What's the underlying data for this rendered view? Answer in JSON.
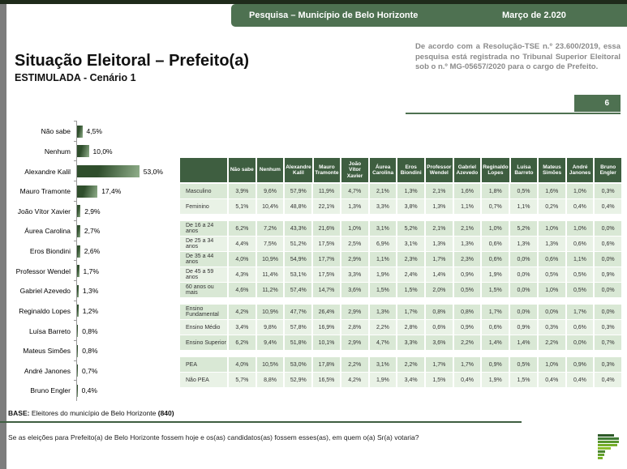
{
  "window": {
    "titlebar": {
      "title": "Pesquisa – Município de Belo Horizonte",
      "date": "Março de  2.020"
    }
  },
  "page": {
    "title": "Situação Eleitoral – Prefeito(a)",
    "subtitle": "ESTIMULADA - Cenário 1",
    "regulation_note": "De acordo com a Resolução-TSE n.º 23.600/2019, essa pesquisa está registrada no Tribunal Superior Eleitoral sob o n.º MG-05657/2020 para o cargo de Prefeito.",
    "page_number": "6"
  },
  "chart_data": {
    "type": "bar",
    "orientation": "horizontal",
    "title": "Situação Eleitoral – Prefeito(a) (Estimulada - Cenário 1)",
    "unit": "%",
    "xlim": [
      0,
      60
    ],
    "categories": [
      "Não sabe",
      "Nenhum",
      "Alexandre Kalil",
      "Mauro Tramonte",
      "João Vítor Xavier",
      "Áurea Carolina",
      "Eros Biondini",
      "Professor Wendel",
      "Gabriel Azevedo",
      "Reginaldo Lopes",
      "Luísa Barreto",
      "Mateus Simões",
      "André Janones",
      "Bruno Engler"
    ],
    "values": [
      4.5,
      10.0,
      53.0,
      17.4,
      2.9,
      2.7,
      2.6,
      1.7,
      1.3,
      1.2,
      0.8,
      0.8,
      0.7,
      0.4
    ],
    "labels": [
      "4,5%",
      "10,0%",
      "53,0%",
      "17,4%",
      "2,9%",
      "2,7%",
      "2,6%",
      "1,7%",
      "1,3%",
      "1,2%",
      "0,8%",
      "0,8%",
      "0,7%",
      "0,4%"
    ]
  },
  "table": {
    "columns": [
      "Não sabe",
      "Nenhum",
      "Alexandre Kalil",
      "Mauro Tramonte",
      "João Vítor Xavier",
      "Áurea Carolina",
      "Eros Biondini",
      "Professor Wendel",
      "Gabriel Azevedo",
      "Reginaldo Lopes",
      "Luísa Barreto",
      "Mateus Simões",
      "André Janones",
      "Bruno Engler"
    ],
    "groups": [
      {
        "rows": [
          {
            "label": "Masculino",
            "values": [
              "3,9%",
              "9,6%",
              "57,9%",
              "11,9%",
              "4,7%",
              "2,1%",
              "1,3%",
              "2,1%",
              "1,6%",
              "1,8%",
              "0,5%",
              "1,6%",
              "1,0%",
              "0,3%"
            ]
          },
          {
            "label": "Feminino",
            "values": [
              "5,1%",
              "10,4%",
              "48,8%",
              "22,1%",
              "1,3%",
              "3,3%",
              "3,8%",
              "1,3%",
              "1,1%",
              "0,7%",
              "1,1%",
              "0,2%",
              "0,4%",
              "0,4%"
            ]
          }
        ]
      },
      {
        "rows": [
          {
            "label": "De 16 a 24 anos",
            "values": [
              "6,2%",
              "7,2%",
              "43,3%",
              "21,6%",
              "1,0%",
              "3,1%",
              "5,2%",
              "2,1%",
              "2,1%",
              "1,0%",
              "5,2%",
              "1,0%",
              "1,0%",
              "0,0%"
            ]
          },
          {
            "label": "De 25 a 34 anos",
            "values": [
              "4,4%",
              "7,5%",
              "51,2%",
              "17,5%",
              "2,5%",
              "6,9%",
              "3,1%",
              "1,3%",
              "1,3%",
              "0,6%",
              "1,3%",
              "1,3%",
              "0,6%",
              "0,6%"
            ]
          },
          {
            "label": "De 35 a 44 anos",
            "values": [
              "4,0%",
              "10,9%",
              "54,9%",
              "17,7%",
              "2,9%",
              "1,1%",
              "2,3%",
              "1,7%",
              "2,3%",
              "0,6%",
              "0,0%",
              "0,6%",
              "1,1%",
              "0,0%"
            ]
          },
          {
            "label": "De 45 a 59 anos",
            "values": [
              "4,3%",
              "11,4%",
              "53,1%",
              "17,5%",
              "3,3%",
              "1,9%",
              "2,4%",
              "1,4%",
              "0,9%",
              "1,9%",
              "0,0%",
              "0,5%",
              "0,5%",
              "0,9%"
            ]
          },
          {
            "label": "60 anos ou mais",
            "values": [
              "4,6%",
              "11,2%",
              "57,4%",
              "14,7%",
              "3,6%",
              "1,5%",
              "1,5%",
              "2,0%",
              "0,5%",
              "1,5%",
              "0,0%",
              "1,0%",
              "0,5%",
              "0,0%"
            ]
          }
        ]
      },
      {
        "rows": [
          {
            "label": "Ensino Fundamental",
            "values": [
              "4,2%",
              "10,9%",
              "47,7%",
              "26,4%",
              "2,9%",
              "1,3%",
              "1,7%",
              "0,8%",
              "0,8%",
              "1,7%",
              "0,0%",
              "0,0%",
              "1,7%",
              "0,0%"
            ]
          },
          {
            "label": "Ensino Médio",
            "values": [
              "3,4%",
              "9,8%",
              "57,8%",
              "16,9%",
              "2,8%",
              "2,2%",
              "2,8%",
              "0,6%",
              "0,9%",
              "0,6%",
              "0,9%",
              "0,3%",
              "0,6%",
              "0,3%"
            ]
          },
          {
            "label": "Ensino Superior",
            "values": [
              "6,2%",
              "9,4%",
              "51,8%",
              "10,1%",
              "2,9%",
              "4,7%",
              "3,3%",
              "3,6%",
              "2,2%",
              "1,4%",
              "1,4%",
              "2,2%",
              "0,0%",
              "0,7%"
            ]
          }
        ]
      },
      {
        "rows": [
          {
            "label": "PEA",
            "values": [
              "4,0%",
              "10,5%",
              "53,0%",
              "17,8%",
              "2,2%",
              "3,1%",
              "2,2%",
              "1,7%",
              "1,7%",
              "0,9%",
              "0,5%",
              "1,0%",
              "0,9%",
              "0,3%"
            ]
          },
          {
            "label": "Não PEA",
            "values": [
              "5,7%",
              "8,8%",
              "52,9%",
              "16,5%",
              "4,2%",
              "1,9%",
              "3,4%",
              "1,5%",
              "0,4%",
              "1,9%",
              "1,5%",
              "0,4%",
              "0,4%",
              "0,4%"
            ]
          }
        ]
      }
    ]
  },
  "footer": {
    "base_label": "BASE:",
    "base_text": " Eleitores do município de Belo Horizonte ",
    "base_count": "(840)",
    "question": "Se as eleições para Prefeito(a) de Belo Horizonte fossem hoje e os(as) candidatos(as) fossem esses(as), em quem o(a) Sr(a) votaria?"
  },
  "logo": {
    "name": "research-institute-logo"
  },
  "colors": {
    "brand_green": "#4e7151",
    "table_header_green": "#3e5e40",
    "row_green_dark": "#d9e8d5",
    "row_green_light": "#e9f2e6",
    "bar_gradient_start": "#2f4e2c",
    "bar_gradient_end": "#90ae8a",
    "note_gray": "#8a8a8a"
  }
}
